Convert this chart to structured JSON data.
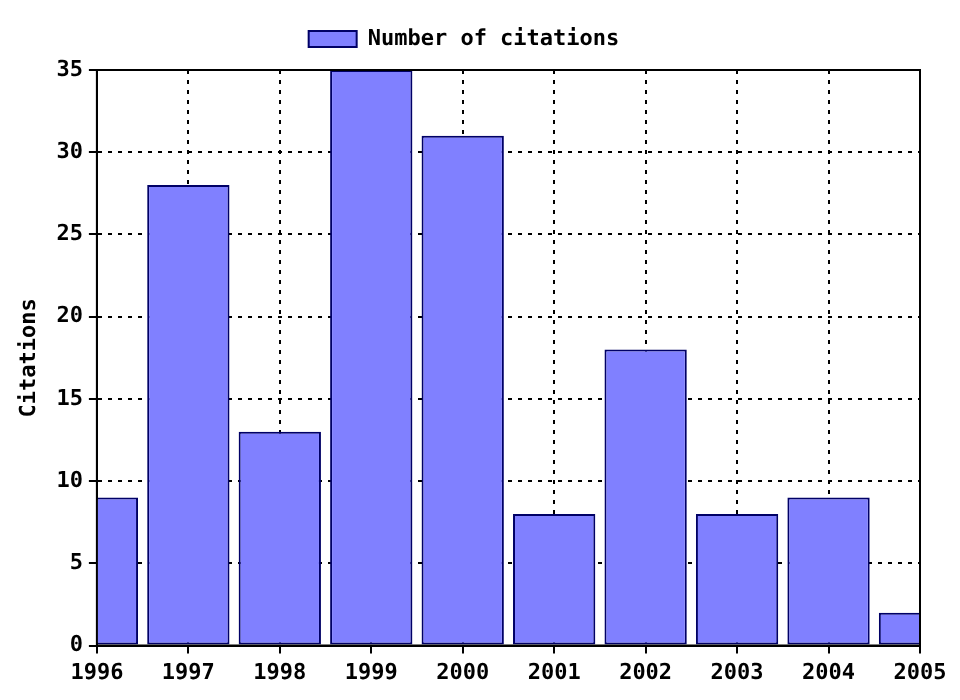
{
  "chart_data": {
    "type": "bar",
    "ylabel": "Citations",
    "x": [
      1996,
      1997,
      1998,
      1999,
      2000,
      2001,
      2002,
      2003,
      2004,
      2005
    ],
    "series": [
      {
        "name": "Number of citations",
        "color": "#8080ff",
        "values": [
          9,
          28,
          13,
          35,
          31,
          8,
          18,
          8,
          9,
          2
        ]
      }
    ],
    "xlim": [
      1996,
      2005
    ],
    "xticks": [
      1996,
      1997,
      1998,
      1999,
      2000,
      2001,
      2002,
      2003,
      2004,
      2005
    ],
    "ylim": [
      0,
      35
    ],
    "yticks": [
      0,
      5,
      10,
      15,
      20,
      25,
      30,
      35
    ],
    "grid": true,
    "legend": "top"
  }
}
